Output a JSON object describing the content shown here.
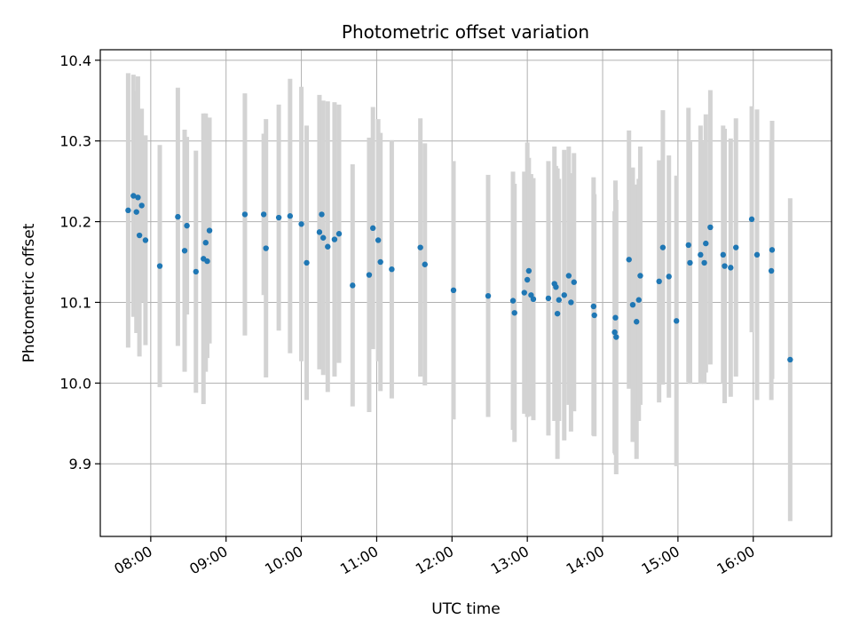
{
  "chart_data": {
    "type": "scatter",
    "title": "Photometric offset variation",
    "xlabel": "UTC time",
    "ylabel": "Photometric offset",
    "x_unit": "hours (UTC)",
    "xlim": [
      7.33,
      17.04
    ],
    "ylim": [
      9.81,
      10.413
    ],
    "grid": true,
    "x_ticks": [
      {
        "value": 8,
        "label": "08:00"
      },
      {
        "value": 9,
        "label": "09:00"
      },
      {
        "value": 10,
        "label": "10:00"
      },
      {
        "value": 11,
        "label": "11:00"
      },
      {
        "value": 12,
        "label": "12:00"
      },
      {
        "value": 13,
        "label": "13:00"
      },
      {
        "value": 14,
        "label": "14:00"
      },
      {
        "value": 15,
        "label": "15:00"
      },
      {
        "value": 16,
        "label": "16:00"
      }
    ],
    "y_ticks": [
      {
        "value": 9.9,
        "label": "9.9"
      },
      {
        "value": 10.0,
        "label": "10.0"
      },
      {
        "value": 10.1,
        "label": "10.1"
      },
      {
        "value": 10.2,
        "label": "10.2"
      },
      {
        "value": 10.3,
        "label": "10.3"
      },
      {
        "value": 10.4,
        "label": "10.4"
      }
    ],
    "colors": {
      "points": "#1f77b4",
      "errorbars": "#d3d3d3",
      "grid": "#b0b0b0"
    },
    "series": [
      {
        "name": "Photometric offset",
        "x": [
          7.7,
          7.77,
          7.81,
          7.83,
          7.85,
          7.88,
          7.93,
          8.12,
          8.36,
          8.45,
          8.48,
          8.6,
          8.7,
          8.73,
          8.75,
          8.78,
          9.25,
          9.5,
          9.53,
          9.7,
          9.85,
          10.0,
          10.07,
          10.24,
          10.27,
          10.29,
          10.35,
          10.44,
          10.5,
          10.68,
          10.9,
          10.95,
          11.02,
          11.05,
          11.2,
          11.58,
          11.64,
          12.02,
          12.48,
          12.81,
          12.83,
          12.96,
          13.0,
          13.02,
          13.05,
          13.08,
          13.28,
          13.36,
          13.38,
          13.4,
          13.42,
          13.49,
          13.55,
          13.58,
          13.62,
          13.88,
          13.89,
          14.16,
          14.17,
          14.18,
          14.35,
          14.4,
          14.45,
          14.48,
          14.5,
          14.75,
          14.8,
          14.88,
          14.98,
          15.14,
          15.16,
          15.3,
          15.35,
          15.37,
          15.43,
          15.6,
          15.62,
          15.7,
          15.77,
          15.98,
          16.05,
          16.24,
          16.25,
          16.49
        ],
        "y": [
          10.214,
          10.232,
          10.212,
          10.23,
          10.183,
          10.22,
          10.177,
          10.145,
          10.206,
          10.164,
          10.195,
          10.138,
          10.154,
          10.174,
          10.151,
          10.189,
          10.209,
          10.209,
          10.167,
          10.205,
          10.207,
          10.197,
          10.149,
          10.187,
          10.209,
          10.18,
          10.169,
          10.178,
          10.185,
          10.121,
          10.134,
          10.192,
          10.177,
          10.15,
          10.141,
          10.168,
          10.147,
          10.115,
          10.108,
          10.102,
          10.087,
          10.112,
          10.128,
          10.139,
          10.109,
          10.104,
          10.105,
          10.123,
          10.119,
          10.086,
          10.103,
          10.109,
          10.133,
          10.1,
          10.125,
          10.095,
          10.084,
          10.063,
          10.081,
          10.057,
          10.153,
          10.097,
          10.076,
          10.103,
          10.133,
          10.126,
          10.168,
          10.132,
          10.077,
          10.171,
          10.149,
          10.159,
          10.149,
          10.173,
          10.193,
          10.159,
          10.145,
          10.143,
          10.168,
          10.203,
          10.159,
          10.139,
          10.165,
          10.029
        ],
        "yerr": [
          0.17,
          0.15,
          0.15,
          0.15,
          0.15,
          0.12,
          0.13,
          0.15,
          0.16,
          0.15,
          0.11,
          0.15,
          0.18,
          0.16,
          0.12,
          0.14,
          0.15,
          0.1,
          0.16,
          0.14,
          0.17,
          0.17,
          0.17,
          0.17,
          0.14,
          0.17,
          0.18,
          0.17,
          0.16,
          0.15,
          0.17,
          0.15,
          0.15,
          0.16,
          0.16,
          0.16,
          0.15,
          0.16,
          0.15,
          0.16,
          0.16,
          0.15,
          0.17,
          0.14,
          0.15,
          0.15,
          0.17,
          0.17,
          0.15,
          0.18,
          0.15,
          0.18,
          0.16,
          0.16,
          0.16,
          0.16,
          0.15,
          0.15,
          0.17,
          0.17,
          0.16,
          0.17,
          0.17,
          0.15,
          0.16,
          0.15,
          0.17,
          0.15,
          0.18,
          0.17,
          0.15,
          0.16,
          0.15,
          0.16,
          0.17,
          0.16,
          0.17,
          0.16,
          0.16,
          0.14,
          0.18,
          0.16,
          0.16,
          0.2
        ]
      }
    ]
  }
}
